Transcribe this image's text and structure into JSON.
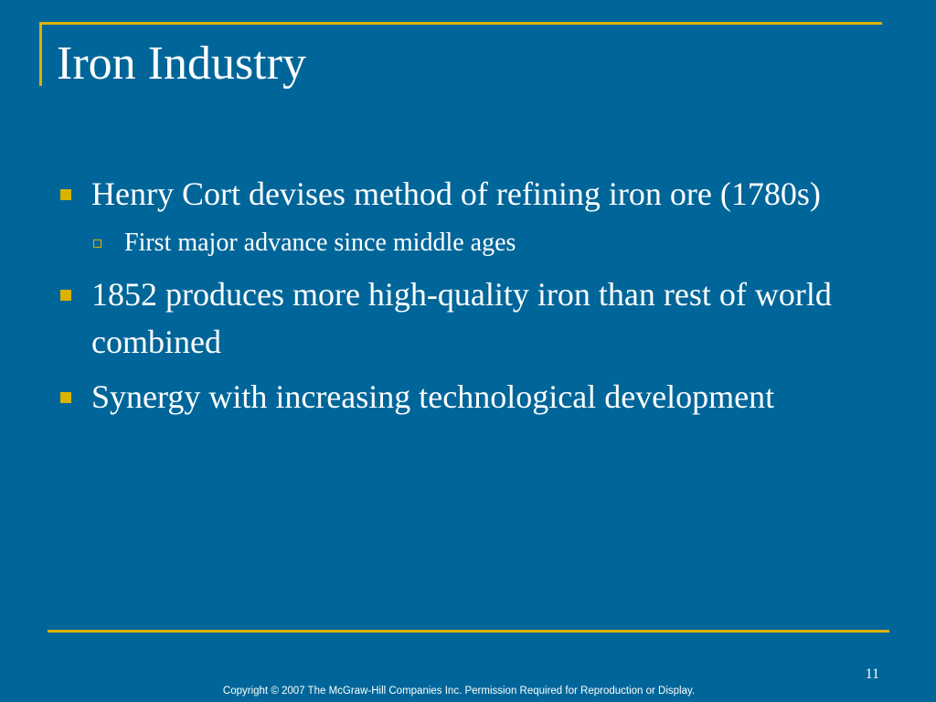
{
  "slide": {
    "title": "Iron Industry",
    "bullets": [
      {
        "text": "Henry Cort devises method of refining iron ore (1780s)",
        "sub": [
          "First major advance since middle ages"
        ]
      },
      {
        "text": "1852 produces more high-quality iron than rest of world combined"
      },
      {
        "text": "Synergy with increasing technological development"
      }
    ],
    "page_number": "11",
    "copyright": "Copyright © 2007 The McGraw-Hill Companies Inc. Permission Required for Reproduction or Display."
  },
  "colors": {
    "background": "#006699",
    "accent": "#d9b300",
    "text": "#ffffff"
  }
}
